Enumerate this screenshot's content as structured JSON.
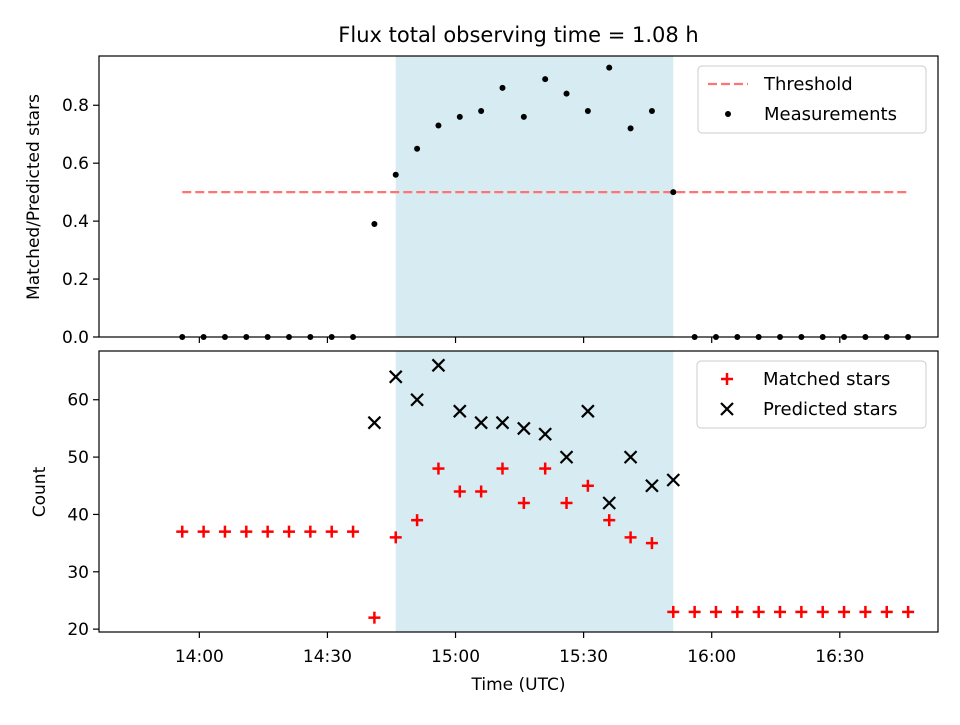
{
  "chart_data": [
    {
      "type": "scatter",
      "title": "Flux total observing time = 1.08 h",
      "xlabel": "",
      "ylabel": "Matched/Predicted stars",
      "ylim": [
        0,
        0.97
      ],
      "yticks": [
        "0.0",
        "0.2",
        "0.4",
        "0.6",
        "0.8"
      ],
      "ytick_values": [
        0,
        0.2,
        0.4,
        0.6,
        0.8
      ],
      "legend_position": "top-right",
      "highlight_span": [
        "14:46",
        "15:51"
      ],
      "highlight_color": "#add8e6",
      "threshold": {
        "name": "Threshold",
        "y": 0.5,
        "x_start": "13:56",
        "x_end": "16:46",
        "color": "#ff7373",
        "style": "dashed"
      },
      "series": [
        {
          "name": "Measurements",
          "marker": "dot",
          "color": "#000000",
          "x": [
            "13:56",
            "14:01",
            "14:06",
            "14:11",
            "14:16",
            "14:21",
            "14:26",
            "14:31",
            "14:36",
            "14:41",
            "14:46",
            "14:51",
            "14:56",
            "15:01",
            "15:06",
            "15:11",
            "15:16",
            "15:21",
            "15:26",
            "15:31",
            "15:36",
            "15:41",
            "15:46",
            "15:51",
            "15:56",
            "16:01",
            "16:06",
            "16:11",
            "16:16",
            "16:21",
            "16:26",
            "16:31",
            "16:36",
            "16:41",
            "16:46"
          ],
          "y": [
            0,
            0,
            0,
            0,
            0,
            0,
            0,
            0,
            0,
            0.39,
            0.56,
            0.65,
            0.73,
            0.76,
            0.78,
            0.86,
            0.76,
            0.89,
            0.84,
            0.78,
            0.93,
            0.72,
            0.78,
            0.5,
            0,
            0,
            0,
            0,
            0,
            0,
            0,
            0,
            0,
            0,
            0
          ]
        }
      ]
    },
    {
      "type": "scatter",
      "xlabel": "Time (UTC)",
      "ylabel": "Count",
      "ylim": [
        19.5,
        68.5
      ],
      "yticks": [
        "20",
        "30",
        "40",
        "50",
        "60"
      ],
      "ytick_values": [
        20,
        30,
        40,
        50,
        60
      ],
      "xticks": [
        "14:00",
        "14:30",
        "15:00",
        "15:30",
        "16:00",
        "16:30"
      ],
      "legend_position": "top-right",
      "highlight_span": [
        "14:46",
        "15:51"
      ],
      "highlight_color": "#add8e6",
      "series": [
        {
          "name": "Matched stars",
          "marker": "plus",
          "color": "#ff0000",
          "x": [
            "13:56",
            "14:01",
            "14:06",
            "14:11",
            "14:16",
            "14:21",
            "14:26",
            "14:31",
            "14:36",
            "14:41",
            "14:46",
            "14:51",
            "14:56",
            "15:01",
            "15:06",
            "15:11",
            "15:16",
            "15:21",
            "15:26",
            "15:31",
            "15:36",
            "15:41",
            "15:46",
            "15:51",
            "15:56",
            "16:01",
            "16:06",
            "16:11",
            "16:16",
            "16:21",
            "16:26",
            "16:31",
            "16:36",
            "16:41",
            "16:46"
          ],
          "y": [
            37,
            37,
            37,
            37,
            37,
            37,
            37,
            37,
            37,
            22,
            36,
            39,
            48,
            44,
            44,
            48,
            42,
            48,
            42,
            45,
            39,
            36,
            35,
            23,
            23,
            23,
            23,
            23,
            23,
            23,
            23,
            23,
            23,
            23,
            23
          ]
        },
        {
          "name": "Predicted stars",
          "marker": "x",
          "color": "#000000",
          "x": [
            "14:41",
            "14:46",
            "14:51",
            "14:56",
            "15:01",
            "15:06",
            "15:11",
            "15:16",
            "15:21",
            "15:26",
            "15:31",
            "15:36",
            "15:41",
            "15:46",
            "15:51"
          ],
          "y": [
            56,
            64,
            60,
            66,
            58,
            56,
            56,
            55,
            54,
            50,
            58,
            42,
            50,
            45,
            46
          ]
        }
      ]
    }
  ]
}
